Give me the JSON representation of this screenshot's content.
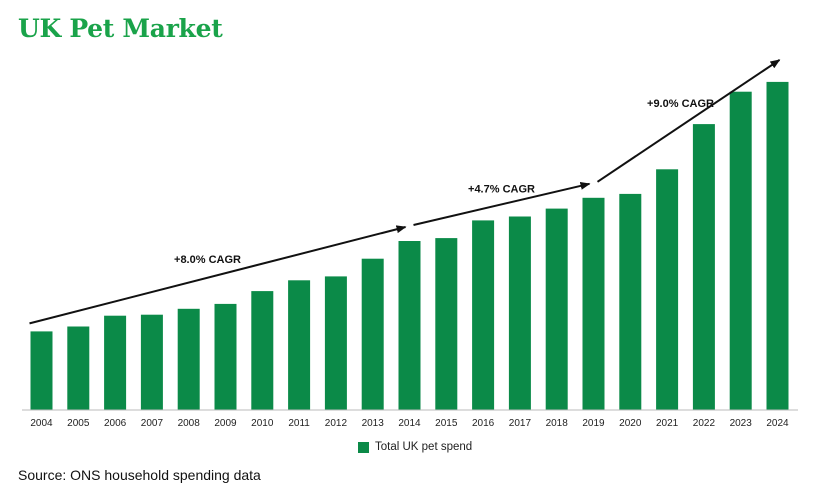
{
  "title": "UK Pet Market",
  "source": "Source: ONS household spending data",
  "colors": {
    "title": "#1aa34a",
    "bar": "#0b8a48",
    "arrow": "#111111"
  },
  "chart_data": {
    "type": "bar",
    "title": "UK Pet Market",
    "xlabel": "",
    "ylabel": "",
    "grid": false,
    "legend_position": "bottom-center",
    "categories": [
      "2004",
      "2005",
      "2006",
      "2007",
      "2008",
      "2009",
      "2010",
      "2011",
      "2012",
      "2013",
      "2014",
      "2015",
      "2016",
      "2017",
      "2018",
      "2019",
      "2020",
      "2021",
      "2022",
      "2023",
      "2024"
    ],
    "series": [
      {
        "name": "Total UK pet spend",
        "values": [
          80,
          85,
          96,
          97,
          103,
          108,
          121,
          132,
          136,
          154,
          172,
          175,
          193,
          197,
          205,
          216,
          220,
          245,
          291,
          324,
          334
        ]
      }
    ],
    "ylim": [
      0,
      340
    ],
    "annotations": [
      {
        "text": "+8.0% CAGR",
        "from": "2004",
        "to": "2014"
      },
      {
        "text": "+4.7% CAGR",
        "from": "2014",
        "to": "2019"
      },
      {
        "text": "+9.0% CAGR",
        "from": "2019",
        "to": "2024"
      }
    ]
  }
}
